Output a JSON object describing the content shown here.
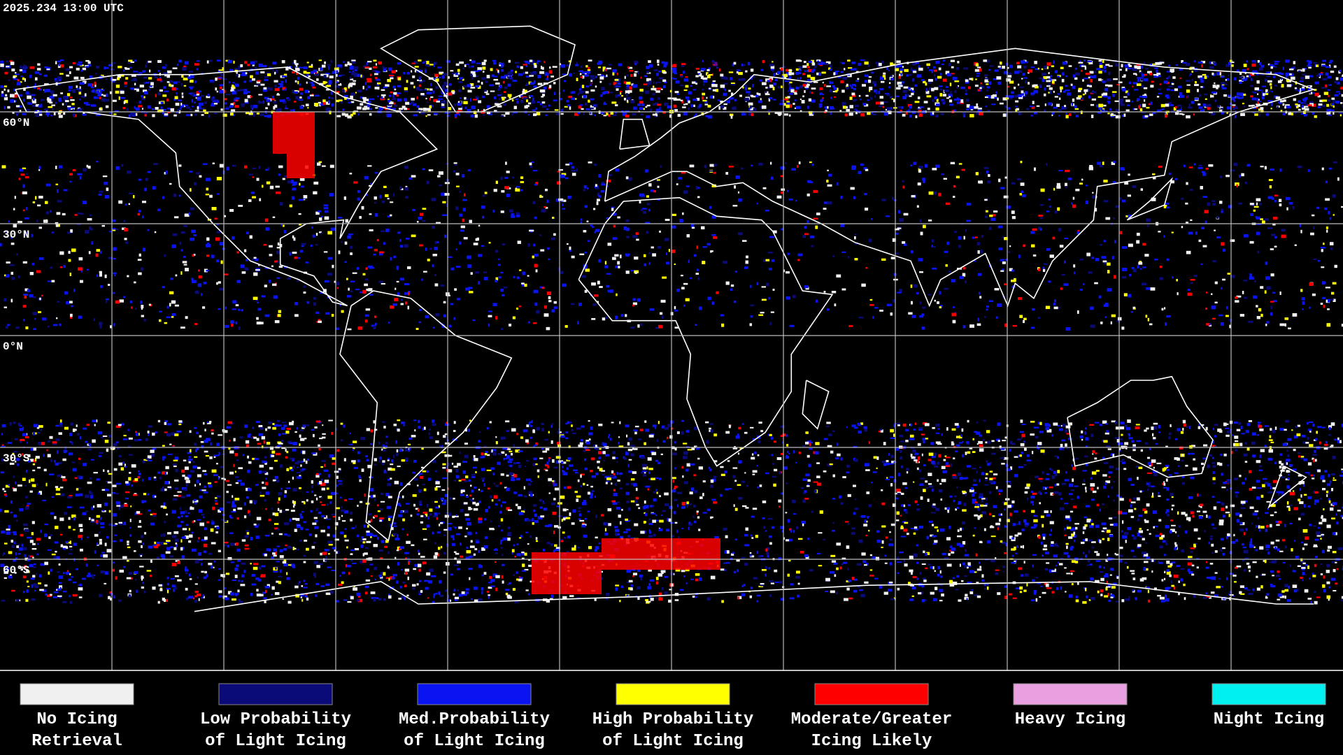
{
  "header": {
    "timestamp": "2025.234 13:00 UTC"
  },
  "latitude_labels": [
    "60°N",
    "30°N",
    "0°N",
    "30°S",
    "60°S"
  ],
  "legend": [
    {
      "color": "#f0f0f0",
      "lines": [
        "No Icing",
        "Retrieval"
      ]
    },
    {
      "color": "#0a0a78",
      "lines": [
        "Low Probability",
        "of Light Icing"
      ]
    },
    {
      "color": "#0a14f0",
      "lines": [
        "Med.Probability",
        "of Light Icing"
      ]
    },
    {
      "color": "#ffff00",
      "lines": [
        "High Probability",
        "of Light Icing"
      ]
    },
    {
      "color": "#ff0000",
      "lines": [
        "Moderate/Greater",
        "Icing Likely"
      ]
    },
    {
      "color": "#e8a0e0",
      "lines": [
        "Heavy Icing"
      ]
    },
    {
      "color": "#00f0f0",
      "lines": [
        "Night Icing"
      ]
    }
  ]
}
